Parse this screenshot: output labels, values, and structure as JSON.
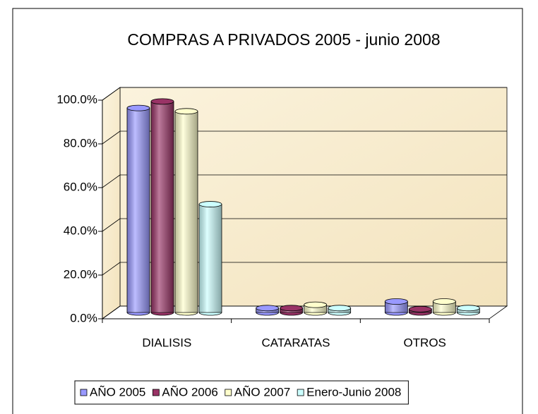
{
  "chart_data": {
    "type": "bar3d",
    "title": "COMPRAS A PRIVADOS 2005 - junio 2008",
    "categories": [
      "DIALISIS",
      "CATARATAS",
      "OTROS"
    ],
    "series": [
      {
        "name": "AÑO 2005",
        "color": "#9999ff",
        "values": [
          93.5,
          2,
          5
        ]
      },
      {
        "name": "AÑO 2006",
        "color": "#993366",
        "values": [
          96.5,
          2,
          1.5
        ]
      },
      {
        "name": "AÑO 2007",
        "color": "#ffffcc",
        "values": [
          92,
          3.5,
          5
        ]
      },
      {
        "name": "Enero-Junio 2008",
        "color": "#ccffff",
        "values": [
          49.5,
          2,
          2
        ]
      }
    ],
    "ylim": [
      0,
      100
    ],
    "yticks": [
      {
        "value": 0,
        "label": "0.0%"
      },
      {
        "value": 20,
        "label": "20.0%"
      },
      {
        "value": 40,
        "label": "40.0%"
      },
      {
        "value": 60,
        "label": "60.0%"
      },
      {
        "value": 80,
        "label": "80.0%"
      },
      {
        "value": 100,
        "label": "100.0%"
      }
    ],
    "grid": true,
    "legend": "bottom"
  }
}
